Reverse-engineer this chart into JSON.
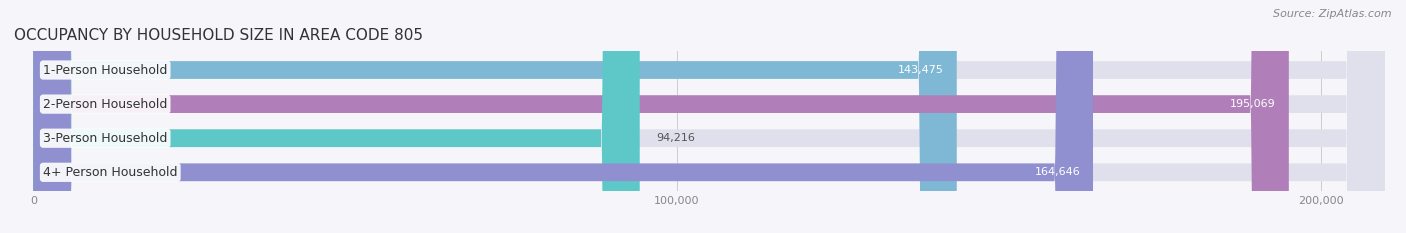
{
  "title": "OCCUPANCY BY HOUSEHOLD SIZE IN AREA CODE 805",
  "source": "Source: ZipAtlas.com",
  "categories": [
    "1-Person Household",
    "2-Person Household",
    "3-Person Household",
    "4+ Person Household"
  ],
  "values": [
    143475,
    195069,
    94216,
    164646
  ],
  "bar_colors": [
    "#7eb8d4",
    "#b07eb8",
    "#5ec8c8",
    "#9090d0"
  ],
  "bar_bg_color": "#e0e0ec",
  "xlim_min": 0,
  "xlim_max": 210000,
  "xticks": [
    0,
    100000,
    200000
  ],
  "xticklabels": [
    "0",
    "100,000",
    "200,000"
  ],
  "title_fontsize": 11,
  "source_fontsize": 8,
  "label_fontsize": 9,
  "value_fontsize": 8,
  "background_color": "#f5f5fa",
  "bar_height": 0.52
}
